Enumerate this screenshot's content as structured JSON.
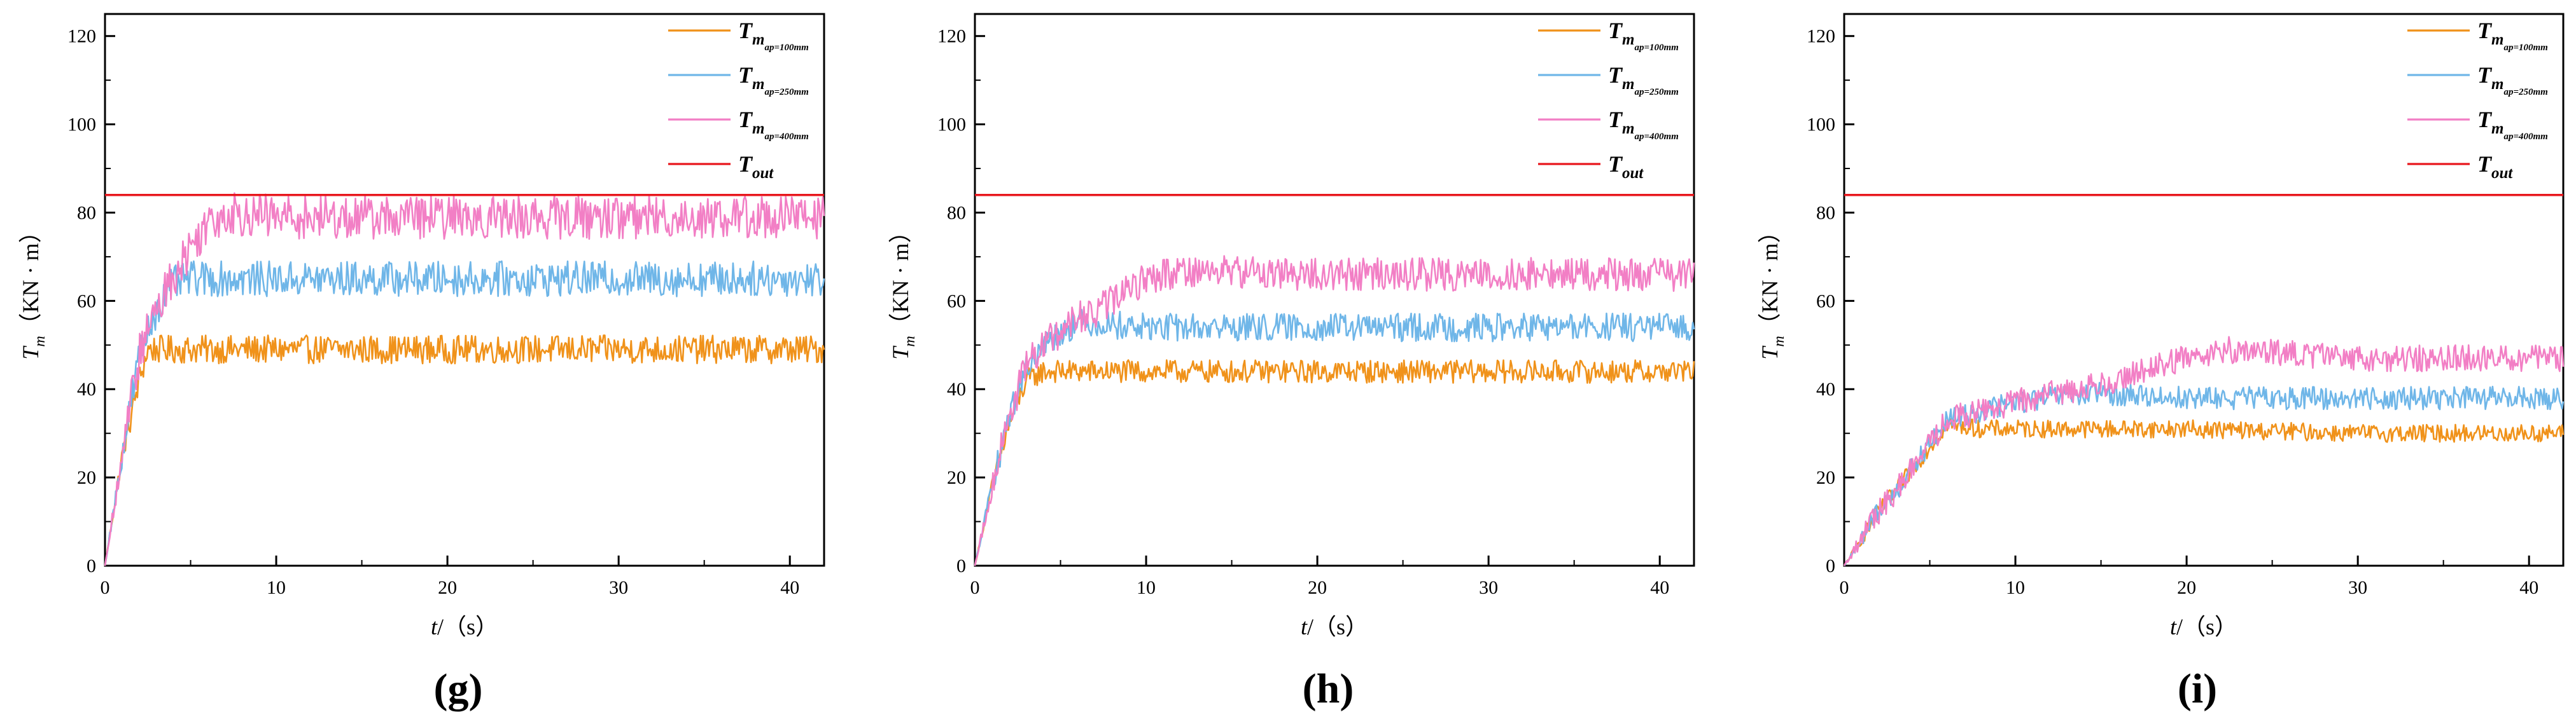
{
  "figure": {
    "panels": [
      "g",
      "h",
      "i"
    ]
  },
  "chart_data": [
    {
      "panel_label": "(g)",
      "type": "line",
      "xlabel": "t/（s）",
      "ylabel": "Tm（KN·m）",
      "ylabel_parts": {
        "sym": "T",
        "sub": "m",
        "unit": "（KN · m）"
      },
      "xlim": [
        0,
        42
      ],
      "ylim": [
        0,
        125
      ],
      "xticks": [
        0,
        10,
        20,
        30,
        40
      ],
      "yticks": [
        0,
        20,
        40,
        60,
        80,
        100,
        120
      ],
      "legend_position": "top-right",
      "reference_line": {
        "name": "Tout",
        "sym": "T",
        "sub": "out",
        "y": 84,
        "color": "#e8161c"
      },
      "series": [
        {
          "name": "Tmap=100mm",
          "sym": "T",
          "sub": "m",
          "subsub": "ap=100mm",
          "color": "#f0921a",
          "x": [
            0,
            1,
            2,
            2.5,
            5,
            10,
            15,
            20,
            25,
            30,
            35,
            40,
            42
          ],
          "y": [
            0,
            25,
            42,
            49,
            49,
            49,
            49,
            49,
            49,
            49,
            49,
            49,
            49
          ],
          "noise": 3.2
        },
        {
          "name": "Tmap=250mm",
          "sym": "T",
          "sub": "m",
          "subsub": "ap=250mm",
          "color": "#6fb6e8",
          "x": [
            0,
            1,
            2,
            3,
            4,
            5,
            6,
            10,
            15,
            20,
            25,
            30,
            35,
            40,
            42
          ],
          "y": [
            0,
            25,
            48,
            58,
            64,
            65,
            65,
            65,
            65,
            65,
            65,
            65,
            65,
            65,
            65
          ],
          "noise": 4.0
        },
        {
          "name": "Tmap=400mm",
          "sym": "T",
          "sub": "m",
          "subsub": "ap=400mm",
          "color": "#f27fc5",
          "x": [
            0,
            1,
            2,
            3,
            4,
            5,
            6,
            7,
            10,
            15,
            20,
            25,
            30,
            35,
            40,
            42
          ],
          "y": [
            0,
            25,
            48,
            58,
            66,
            72,
            78,
            80,
            79,
            79,
            79,
            79,
            79,
            79,
            79,
            79
          ],
          "noise": 5.0
        }
      ]
    },
    {
      "panel_label": "(h)",
      "type": "line",
      "xlabel": "t/（s）",
      "ylabel": "Tm（KN·m）",
      "ylabel_parts": {
        "sym": "T",
        "sub": "m",
        "unit": "（KN · m）"
      },
      "xlim": [
        0,
        42
      ],
      "ylim": [
        0,
        125
      ],
      "xticks": [
        0,
        10,
        20,
        30,
        40
      ],
      "yticks": [
        0,
        20,
        40,
        60,
        80,
        100,
        120
      ],
      "legend_position": "top-right",
      "reference_line": {
        "name": "Tout",
        "sym": "T",
        "sub": "out",
        "y": 84,
        "color": "#e8161c"
      },
      "series": [
        {
          "name": "Tmap=100mm",
          "sym": "T",
          "sub": "m",
          "subsub": "ap=100mm",
          "color": "#f0921a",
          "x": [
            0,
            1,
            2,
            3,
            4,
            10,
            20,
            30,
            40,
            42
          ],
          "y": [
            0,
            18,
            32,
            42,
            44,
            44,
            44,
            44,
            44,
            44
          ],
          "noise": 2.6
        },
        {
          "name": "Tmap=250mm",
          "sym": "T",
          "sub": "m",
          "subsub": "ap=250mm",
          "color": "#6fb6e8",
          "x": [
            0,
            1,
            2,
            3,
            4,
            5,
            6,
            7,
            10,
            20,
            30,
            40,
            42
          ],
          "y": [
            0,
            18,
            34,
            45,
            50,
            53,
            55,
            55,
            54,
            54,
            54,
            54,
            54
          ],
          "noise": 3.2
        },
        {
          "name": "Tmap=400mm",
          "sym": "T",
          "sub": "m",
          "subsub": "ap=400mm",
          "color": "#f27fc5",
          "x": [
            0,
            1,
            2,
            3,
            4,
            5,
            6,
            7,
            8,
            9,
            10,
            12,
            20,
            30,
            40,
            42
          ],
          "y": [
            0,
            18,
            34,
            45,
            50,
            53,
            56,
            57,
            60,
            63,
            65,
            67,
            66,
            66,
            66,
            66
          ],
          "noise": 3.8
        }
      ]
    },
    {
      "panel_label": "(i)",
      "type": "line",
      "xlabel": "t/（s）",
      "ylabel": "Tm（KN·m）",
      "ylabel_parts": {
        "sym": "T",
        "sub": "m",
        "unit": "（KN · m）"
      },
      "xlim": [
        0,
        42
      ],
      "ylim": [
        0,
        125
      ],
      "xticks": [
        0,
        10,
        20,
        30,
        40
      ],
      "yticks": [
        0,
        20,
        40,
        60,
        80,
        100,
        120
      ],
      "legend_position": "top-right",
      "reference_line": {
        "name": "Tout",
        "sym": "T",
        "sub": "out",
        "y": 84,
        "color": "#e8161c"
      },
      "series": [
        {
          "name": "Tmap=100mm",
          "sym": "T",
          "sub": "m",
          "subsub": "ap=100mm",
          "color": "#f0921a",
          "x": [
            0,
            2,
            4,
            6,
            8,
            10,
            20,
            30,
            40,
            42
          ],
          "y": [
            0,
            12,
            22,
            32,
            31,
            31,
            31,
            30,
            30,
            30
          ],
          "noise": 2.0
        },
        {
          "name": "Tmap=250mm",
          "sym": "T",
          "sub": "m",
          "subsub": "ap=250mm",
          "color": "#6fb6e8",
          "x": [
            0,
            2,
            4,
            6,
            8,
            10,
            12,
            15,
            20,
            30,
            40,
            42
          ],
          "y": [
            0,
            12,
            22,
            33,
            35,
            37,
            38,
            39,
            38,
            38,
            38,
            38
          ],
          "noise": 2.6
        },
        {
          "name": "Tmap=400mm",
          "sym": "T",
          "sub": "m",
          "subsub": "ap=400mm",
          "color": "#f27fc5",
          "x": [
            0,
            2,
            4,
            6,
            8,
            10,
            12,
            15,
            18,
            22,
            30,
            40,
            42
          ],
          "y": [
            0,
            12,
            22,
            33,
            35,
            37,
            39,
            41,
            45,
            49,
            47,
            47,
            47
          ],
          "noise": 3.0
        }
      ]
    }
  ]
}
